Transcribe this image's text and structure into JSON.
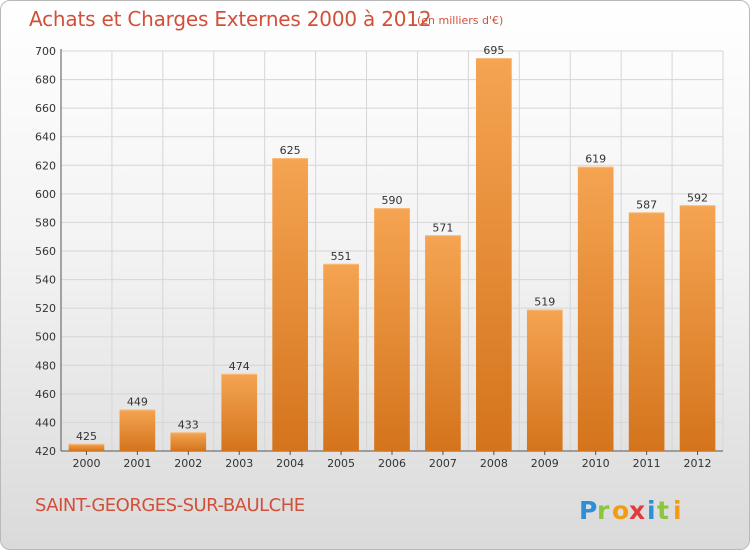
{
  "header": {
    "title": "Achats et Charges Externes 2000 à 2012",
    "unit": "(en milliers d'€)"
  },
  "footer": {
    "city": "SAINT-GEORGES-SUR-BAULCHE",
    "logo_text": "Proxiti"
  },
  "colors": {
    "bar_top": "#f5a452",
    "bar_bottom": "#d4741c",
    "title": "#d2503a",
    "logo_p": "#2e8fd8",
    "logo_r": "#8cc63f",
    "logo_o": "#f39c12",
    "logo_x": "#e23b3b",
    "logo_i1": "#2e8fd8",
    "logo_t": "#8cc63f",
    "logo_i2": "#f39c12"
  },
  "chart_data": {
    "type": "bar",
    "title": "Achats et Charges Externes 2000 à 2012",
    "xlabel": "",
    "ylabel": "",
    "categories": [
      "2000",
      "2001",
      "2002",
      "2003",
      "2004",
      "2005",
      "2006",
      "2007",
      "2008",
      "2009",
      "2010",
      "2011",
      "2012"
    ],
    "values": [
      425,
      449,
      433,
      474,
      625,
      551,
      590,
      571,
      695,
      519,
      619,
      587,
      592
    ],
    "ylim": [
      420,
      700
    ],
    "yticks": [
      420,
      440,
      460,
      480,
      500,
      520,
      540,
      560,
      580,
      600,
      620,
      640,
      660,
      680,
      700
    ],
    "grid": true,
    "data_labels": true
  }
}
